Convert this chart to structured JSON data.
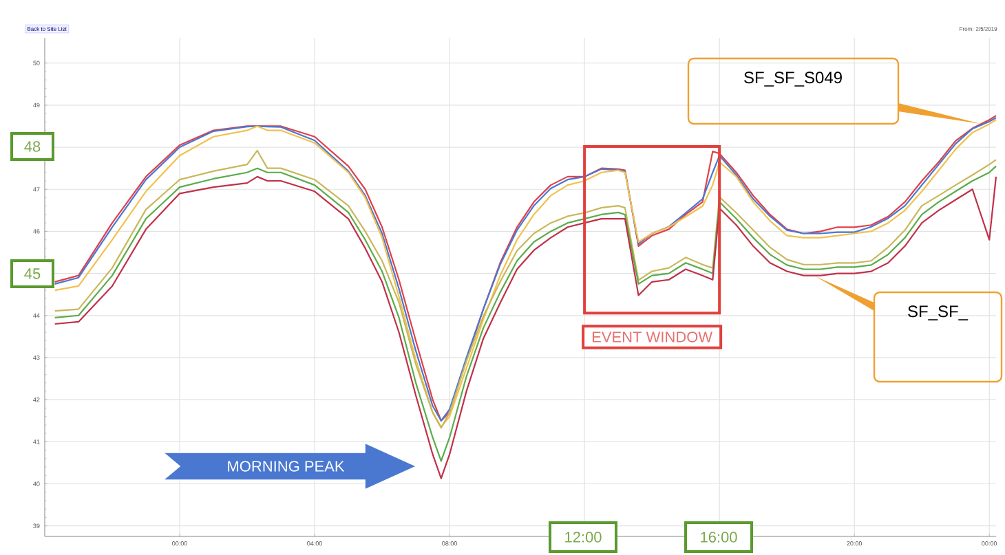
{
  "chart_data": {
    "type": "line",
    "x": [
      -3.7,
      -3,
      -2,
      -1,
      0,
      1,
      2,
      2.3,
      2.6,
      3,
      4,
      5,
      5.5,
      6,
      6.5,
      7,
      7.5,
      7.75,
      8,
      8.5,
      9,
      9.5,
      10,
      10.5,
      11,
      11.5,
      12,
      12.5,
      13,
      13.2,
      13.6,
      14,
      14.5,
      15,
      15.5,
      15.8,
      16,
      16.5,
      17,
      17.5,
      18,
      18.5,
      19,
      19.5,
      20,
      20.5,
      21,
      21.5,
      22,
      22.5,
      23,
      23.5,
      24,
      24.2
    ],
    "series": [
      {
        "color": "#e0404a",
        "values": [
          44.8,
          44.95,
          46.2,
          47.3,
          48.05,
          48.4,
          48.5,
          48.5,
          48.5,
          48.5,
          48.25,
          47.55,
          47.0,
          46.1,
          44.85,
          43.4,
          42.0,
          41.5,
          41.7,
          42.95,
          44.15,
          45.25,
          46.1,
          46.7,
          47.1,
          47.3,
          47.3,
          47.5,
          47.48,
          47.45,
          45.65,
          45.9,
          46.05,
          46.4,
          46.7,
          47.9,
          47.85,
          47.4,
          46.85,
          46.4,
          46.05,
          45.95,
          46.0,
          46.1,
          46.1,
          46.15,
          46.35,
          46.7,
          47.2,
          47.65,
          48.15,
          48.45,
          48.65,
          48.75
        ]
      },
      {
        "color": "#4a78d0",
        "values": [
          44.75,
          44.9,
          46.1,
          47.23,
          48.0,
          48.38,
          48.49,
          48.5,
          48.49,
          48.48,
          48.16,
          47.43,
          46.85,
          45.95,
          44.64,
          43.16,
          41.85,
          41.5,
          41.77,
          43.0,
          44.15,
          45.21,
          46.03,
          46.61,
          47.02,
          47.23,
          47.3,
          47.48,
          47.46,
          47.43,
          45.7,
          45.95,
          46.11,
          46.44,
          46.77,
          47.4,
          47.8,
          47.34,
          46.77,
          46.36,
          46.03,
          45.95,
          45.95,
          45.98,
          45.98,
          46.11,
          46.31,
          46.61,
          47.1,
          47.59,
          48.08,
          48.44,
          48.61,
          48.7
        ]
      },
      {
        "color": "#f2c14e",
        "values": [
          44.6,
          44.7,
          45.8,
          46.95,
          47.8,
          48.25,
          48.4,
          48.5,
          48.4,
          48.4,
          48.1,
          47.4,
          46.8,
          45.85,
          44.45,
          42.95,
          41.7,
          41.35,
          41.6,
          42.75,
          43.9,
          44.95,
          45.8,
          46.4,
          46.85,
          47.1,
          47.2,
          47.4,
          47.45,
          47.4,
          45.75,
          45.95,
          46.1,
          46.35,
          46.6,
          47.1,
          47.65,
          47.3,
          46.7,
          46.25,
          45.9,
          45.85,
          45.85,
          45.9,
          45.95,
          46.0,
          46.2,
          46.5,
          46.95,
          47.45,
          47.95,
          48.35,
          48.55,
          48.65
        ]
      },
      {
        "color": "#c8b85a",
        "values": [
          44.11,
          44.15,
          45.13,
          46.52,
          47.23,
          47.43,
          47.59,
          47.92,
          47.5,
          47.5,
          47.23,
          46.61,
          46.0,
          45.3,
          44.31,
          42.84,
          41.69,
          41.33,
          41.69,
          42.92,
          43.98,
          44.8,
          45.54,
          45.95,
          46.2,
          46.36,
          46.44,
          46.56,
          46.61,
          46.56,
          44.84,
          45.05,
          45.13,
          45.38,
          45.21,
          45.13,
          46.82,
          46.44,
          46.03,
          45.62,
          45.33,
          45.21,
          45.21,
          45.25,
          45.25,
          45.3,
          45.62,
          46.03,
          46.61,
          46.85,
          47.1,
          47.34,
          47.59,
          47.7
        ]
      },
      {
        "color": "#5aac4a",
        "values": [
          43.95,
          44.0,
          44.95,
          46.3,
          47.05,
          47.25,
          47.4,
          47.5,
          47.4,
          47.4,
          47.1,
          46.45,
          45.8,
          45.05,
          43.95,
          42.4,
          41.1,
          40.54,
          41.1,
          42.55,
          43.7,
          44.55,
          45.3,
          45.75,
          46.0,
          46.2,
          46.3,
          46.4,
          46.45,
          46.4,
          44.75,
          44.95,
          45.0,
          45.25,
          45.1,
          45.0,
          46.7,
          46.3,
          45.85,
          45.45,
          45.2,
          45.1,
          45.1,
          45.15,
          45.15,
          45.2,
          45.45,
          45.85,
          46.4,
          46.7,
          46.95,
          47.2,
          47.4,
          47.55
        ]
      },
      {
        "color": "#c0304a",
        "values": [
          43.8,
          43.85,
          44.7,
          46.05,
          46.9,
          47.05,
          47.15,
          47.3,
          47.2,
          47.2,
          46.95,
          46.3,
          45.6,
          44.8,
          43.6,
          42.1,
          40.7,
          40.13,
          40.7,
          42.2,
          43.45,
          44.3,
          45.1,
          45.55,
          45.85,
          46.1,
          46.2,
          46.3,
          46.3,
          46.3,
          44.48,
          44.8,
          44.85,
          45.1,
          44.95,
          44.85,
          46.55,
          46.15,
          45.65,
          45.25,
          45.05,
          44.95,
          44.95,
          45.0,
          45.0,
          45.05,
          45.25,
          45.65,
          46.2,
          46.5,
          46.75,
          47.0,
          45.8,
          47.3
        ]
      }
    ],
    "xlim": [
      -4,
      24.2
    ],
    "ylim": [
      38.75,
      50.6
    ],
    "xticks": [
      {
        "value": 0,
        "label": "00:00"
      },
      {
        "value": 4,
        "label": "04:00"
      },
      {
        "value": 8,
        "label": "08:00"
      },
      {
        "value": 12,
        "label": null
      },
      {
        "value": 16,
        "label": null
      },
      {
        "value": 20,
        "label": "20:00"
      },
      {
        "value": 24,
        "label": "00:00"
      }
    ],
    "yticks": [
      39,
      40,
      41,
      42,
      43,
      44,
      {
        "value": 45,
        "label": null
      },
      46,
      47,
      {
        "value": 48,
        "label": null
      },
      49,
      50
    ],
    "grid": true,
    "bands": [
      {
        "axis": "x",
        "from": 12,
        "to": 16,
        "label": "EVENT WINDOW",
        "color": "#e0403c"
      }
    ],
    "annotations": [
      "Back to Site List",
      "From: 2/5/2019",
      "48",
      "45",
      "12:00",
      "16:00",
      "MORNING PEAK",
      "SF_SF_S049",
      "SF_SF_"
    ]
  }
}
